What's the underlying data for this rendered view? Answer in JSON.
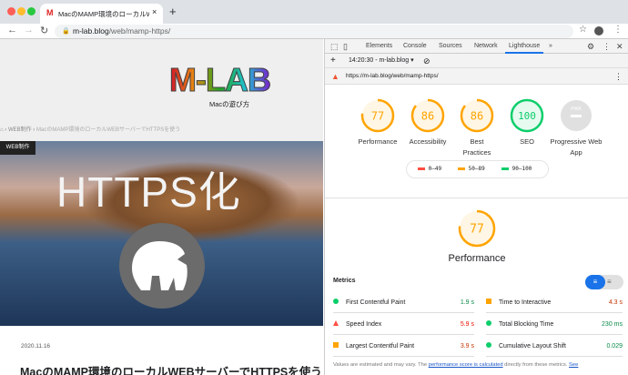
{
  "browser": {
    "tab_title": "MacのMAMP環境のローカルWEB",
    "url_host": "m-lab.blog",
    "url_path": "/web/mamp-https/",
    "new_tab": "+",
    "close": "×"
  },
  "page": {
    "logo_text": "M-LAB",
    "tagline": "Macの遊び方",
    "breadcrumb": [
      "WEB制作",
      "MacのMAMP環境のローカルWEBサーバーでHTTPSを使う"
    ],
    "category_badge": "WEB制作",
    "hero_text": "HTTPS化",
    "date": "2020.11.16",
    "title": "MacのMAMP環境のローカルWEBサーバーでHTTPSを使う"
  },
  "devtools": {
    "tabs": [
      "Elements",
      "Console",
      "Sources",
      "Network",
      "Lighthouse"
    ],
    "active_tab": "Lighthouse",
    "more": "»",
    "report_selector": "14:20:30 - m-lab.blog",
    "report_url": "https://m-lab.blog/web/mamp-https/",
    "scores": [
      {
        "label": "Performance",
        "value": "77",
        "score": 77,
        "color": "#ffa400"
      },
      {
        "label": "Accessibility",
        "value": "86",
        "score": 86,
        "color": "#ffa400"
      },
      {
        "label": "Best Practices",
        "value": "86",
        "score": 86,
        "color": "#ffa400"
      },
      {
        "label": "SEO",
        "value": "100",
        "score": 100,
        "color": "#0cce6b"
      },
      {
        "label": "Progressive Web App",
        "value": "PWA",
        "score": null,
        "color": "#bbbbbb"
      }
    ],
    "legend": [
      {
        "range": "0–49",
        "color": "#ff4e42"
      },
      {
        "range": "50–89",
        "color": "#ffa400"
      },
      {
        "range": "90–100",
        "color": "#0cce6b"
      }
    ],
    "perf_score": "77",
    "perf_title": "Performance",
    "metrics_title": "Metrics",
    "metrics": [
      {
        "name": "First Contentful Paint",
        "value": "1.9 s",
        "color": "#0a8a4a",
        "shape": "circle",
        "icolor": "#0cce6b"
      },
      {
        "name": "Time to Interactive",
        "value": "4.3 s",
        "color": "#c33300",
        "shape": "square",
        "icolor": "#ffa400"
      },
      {
        "name": "Speed Index",
        "value": "5.9 s",
        "color": "#eb0f00",
        "shape": "triangle",
        "icolor": "#ff4e42"
      },
      {
        "name": "Total Blocking Time",
        "value": "230 ms",
        "color": "#0a8a4a",
        "shape": "circle",
        "icolor": "#0cce6b"
      },
      {
        "name": "Largest Contentful Paint",
        "value": "3.9 s",
        "color": "#c33300",
        "shape": "square",
        "icolor": "#ffa400"
      },
      {
        "name": "Cumulative Layout Shift",
        "value": "0.029",
        "color": "#0a8a4a",
        "shape": "circle",
        "icolor": "#0cce6b"
      }
    ],
    "footer": {
      "text": "Values are estimated and may vary. The ",
      "link": "performance score is calculated",
      "rest": " directly from these metrics. ",
      "see": "See"
    }
  }
}
